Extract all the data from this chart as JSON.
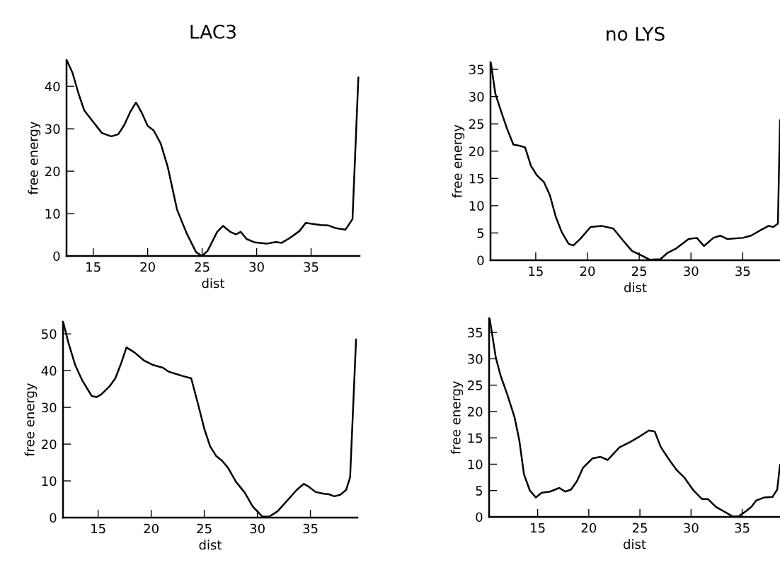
{
  "chart_data": [
    {
      "type": "line",
      "title": "LAC3",
      "xlabel": "dist",
      "ylabel": "free energy",
      "xlim": [
        12.55,
        39.45
      ],
      "ylim": [
        0,
        46.2
      ],
      "xticks": [
        15,
        20,
        25,
        30,
        35
      ],
      "yticks": [
        0,
        10,
        20,
        30,
        40
      ],
      "series": [
        {
          "color": "#000000",
          "x": [
            12.56,
            13.1,
            13.64,
            14.18,
            14.94,
            15.8,
            16.66,
            17.3,
            17.85,
            18.4,
            18.93,
            19.47,
            20.0,
            20.55,
            21.2,
            21.85,
            22.7,
            23.57,
            24.44,
            24.98,
            25.5,
            26.38,
            26.92,
            27.57,
            28.1,
            28.54,
            29.08,
            29.84,
            30.9,
            31.78,
            32.3,
            33.08,
            33.94,
            34.5,
            35.9,
            36.6,
            37.2,
            38.15,
            38.8,
            39.34
          ],
          "values": [
            46.2,
            43.2,
            38.4,
            34.3,
            31.8,
            29,
            28.2,
            28.7,
            30.9,
            34,
            36.2,
            33.7,
            30.7,
            29.6,
            26.5,
            20.9,
            10.9,
            5.4,
            0.9,
            0,
            1.2,
            5.7,
            7.1,
            5.7,
            5.1,
            5.7,
            4,
            3.2,
            2.9,
            3.3,
            3.1,
            4.3,
            5.9,
            7.8,
            7.3,
            7.2,
            6.6,
            6.2,
            8.7,
            42.1
          ]
        }
      ]
    },
    {
      "type": "line",
      "title": "no LYS",
      "xlabel": "dist",
      "ylabel": "free energy",
      "xlim": [
        10.63,
        38.6
      ],
      "ylim": [
        0,
        36.3
      ],
      "xticks": [
        15,
        20,
        25,
        30,
        35
      ],
      "yticks": [
        0,
        5,
        10,
        15,
        20,
        25,
        30,
        35
      ],
      "series": [
        {
          "color": "#000000",
          "x": [
            10.67,
            11.1,
            11.7,
            12.25,
            12.84,
            13.4,
            13.97,
            14.54,
            15.1,
            15.8,
            16.37,
            16.93,
            17.5,
            18.18,
            18.63,
            19.3,
            20.3,
            21.35,
            22.5,
            23.4,
            24.3,
            25.2,
            26.0,
            27.05,
            27.7,
            28.6,
            29.77,
            30.56,
            31.25,
            32.16,
            32.85,
            33.5,
            35.0,
            35.8,
            36.8,
            37.5,
            37.95,
            38.4,
            38.6
          ],
          "values": [
            36.1,
            30.5,
            27,
            24,
            21.2,
            21,
            20.7,
            17.3,
            15.6,
            14.3,
            11.9,
            8,
            5.2,
            3,
            2.7,
            3.9,
            6.1,
            6.3,
            5.8,
            3.7,
            1.7,
            0.9,
            0.1,
            0.2,
            1.3,
            2.2,
            3.9,
            4.1,
            2.6,
            4.1,
            4.5,
            3.9,
            4.1,
            4.5,
            5.6,
            6.3,
            6.1,
            6.7,
            25.7
          ]
        }
      ]
    },
    {
      "type": "line",
      "xlabel": "dist",
      "ylabel": "free energy",
      "xlim": [
        11.69,
        39.43
      ],
      "ylim": [
        0,
        53.3
      ],
      "xticks": [
        15,
        20,
        25,
        30,
        35
      ],
      "yticks": [
        0,
        10,
        20,
        30,
        40,
        50
      ],
      "series": [
        {
          "color": "#000000",
          "x": [
            11.73,
            12.17,
            12.84,
            13.51,
            14.4,
            14.84,
            15.29,
            16.07,
            16.62,
            17.18,
            17.67,
            18.4,
            19.3,
            20.2,
            21.1,
            21.66,
            22.88,
            23.77,
            24.44,
            25.0,
            25.55,
            26.11,
            26.67,
            27.23,
            28.0,
            28.79,
            29.57,
            30.46,
            31.13,
            31.9,
            32.8,
            33.7,
            34.37,
            34.8,
            35.47,
            36.25,
            36.7,
            37.25,
            37.8,
            38.36,
            38.74,
            39.3
          ],
          "values": [
            53,
            47.9,
            41.5,
            37.3,
            33.1,
            32.8,
            33.5,
            35.7,
            37.9,
            42.1,
            46.3,
            45,
            42.8,
            41.5,
            40.8,
            39.7,
            38.6,
            37.9,
            30.6,
            24.2,
            19.4,
            16.8,
            15.5,
            13.6,
            9.7,
            6.9,
            3,
            0.3,
            0.3,
            1.7,
            4.6,
            7.5,
            9.2,
            8.5,
            7,
            6.5,
            6.4,
            5.8,
            6.2,
            7.5,
            11,
            48.5
          ]
        }
      ]
    },
    {
      "type": "line",
      "xlabel": "dist",
      "ylabel": "free energy",
      "xlim": [
        10.25,
        38.7
      ],
      "ylim": [
        0,
        37.7
      ],
      "xticks": [
        15,
        20,
        25,
        30,
        35
      ],
      "yticks": [
        0,
        5,
        10,
        15,
        20,
        25,
        30,
        35
      ],
      "series": [
        {
          "color": "#000000",
          "x": [
            10.32,
            10.9,
            11.36,
            12.05,
            12.74,
            13.2,
            13.66,
            14.24,
            14.82,
            15.4,
            16.2,
            17.12,
            17.7,
            18.27,
            18.85,
            19.43,
            20.35,
            21.16,
            21.85,
            22.42,
            23.0,
            24.04,
            24.84,
            25.88,
            26.45,
            27.03,
            27.95,
            28.64,
            29.33,
            30.25,
            31.06,
            31.64,
            32.44,
            33.36,
            34.06,
            34.63,
            35.32,
            35.9,
            36.36,
            37.17,
            37.97,
            38.43,
            38.7
          ],
          "values": [
            37.5,
            30.3,
            26.9,
            23.1,
            18.9,
            14.6,
            8.1,
            5,
            3.7,
            4.6,
            4.8,
            5.5,
            4.8,
            5.2,
            6.8,
            9.3,
            11.1,
            11.4,
            10.8,
            12,
            13.2,
            14.2,
            15.1,
            16.4,
            16.2,
            13.3,
            10.6,
            8.8,
            7.5,
            5,
            3.4,
            3.4,
            1.9,
            0.9,
            0.1,
            0.1,
            1,
            1.9,
            3.1,
            3.7,
            3.8,
            5.2,
            9.9
          ]
        }
      ]
    }
  ]
}
